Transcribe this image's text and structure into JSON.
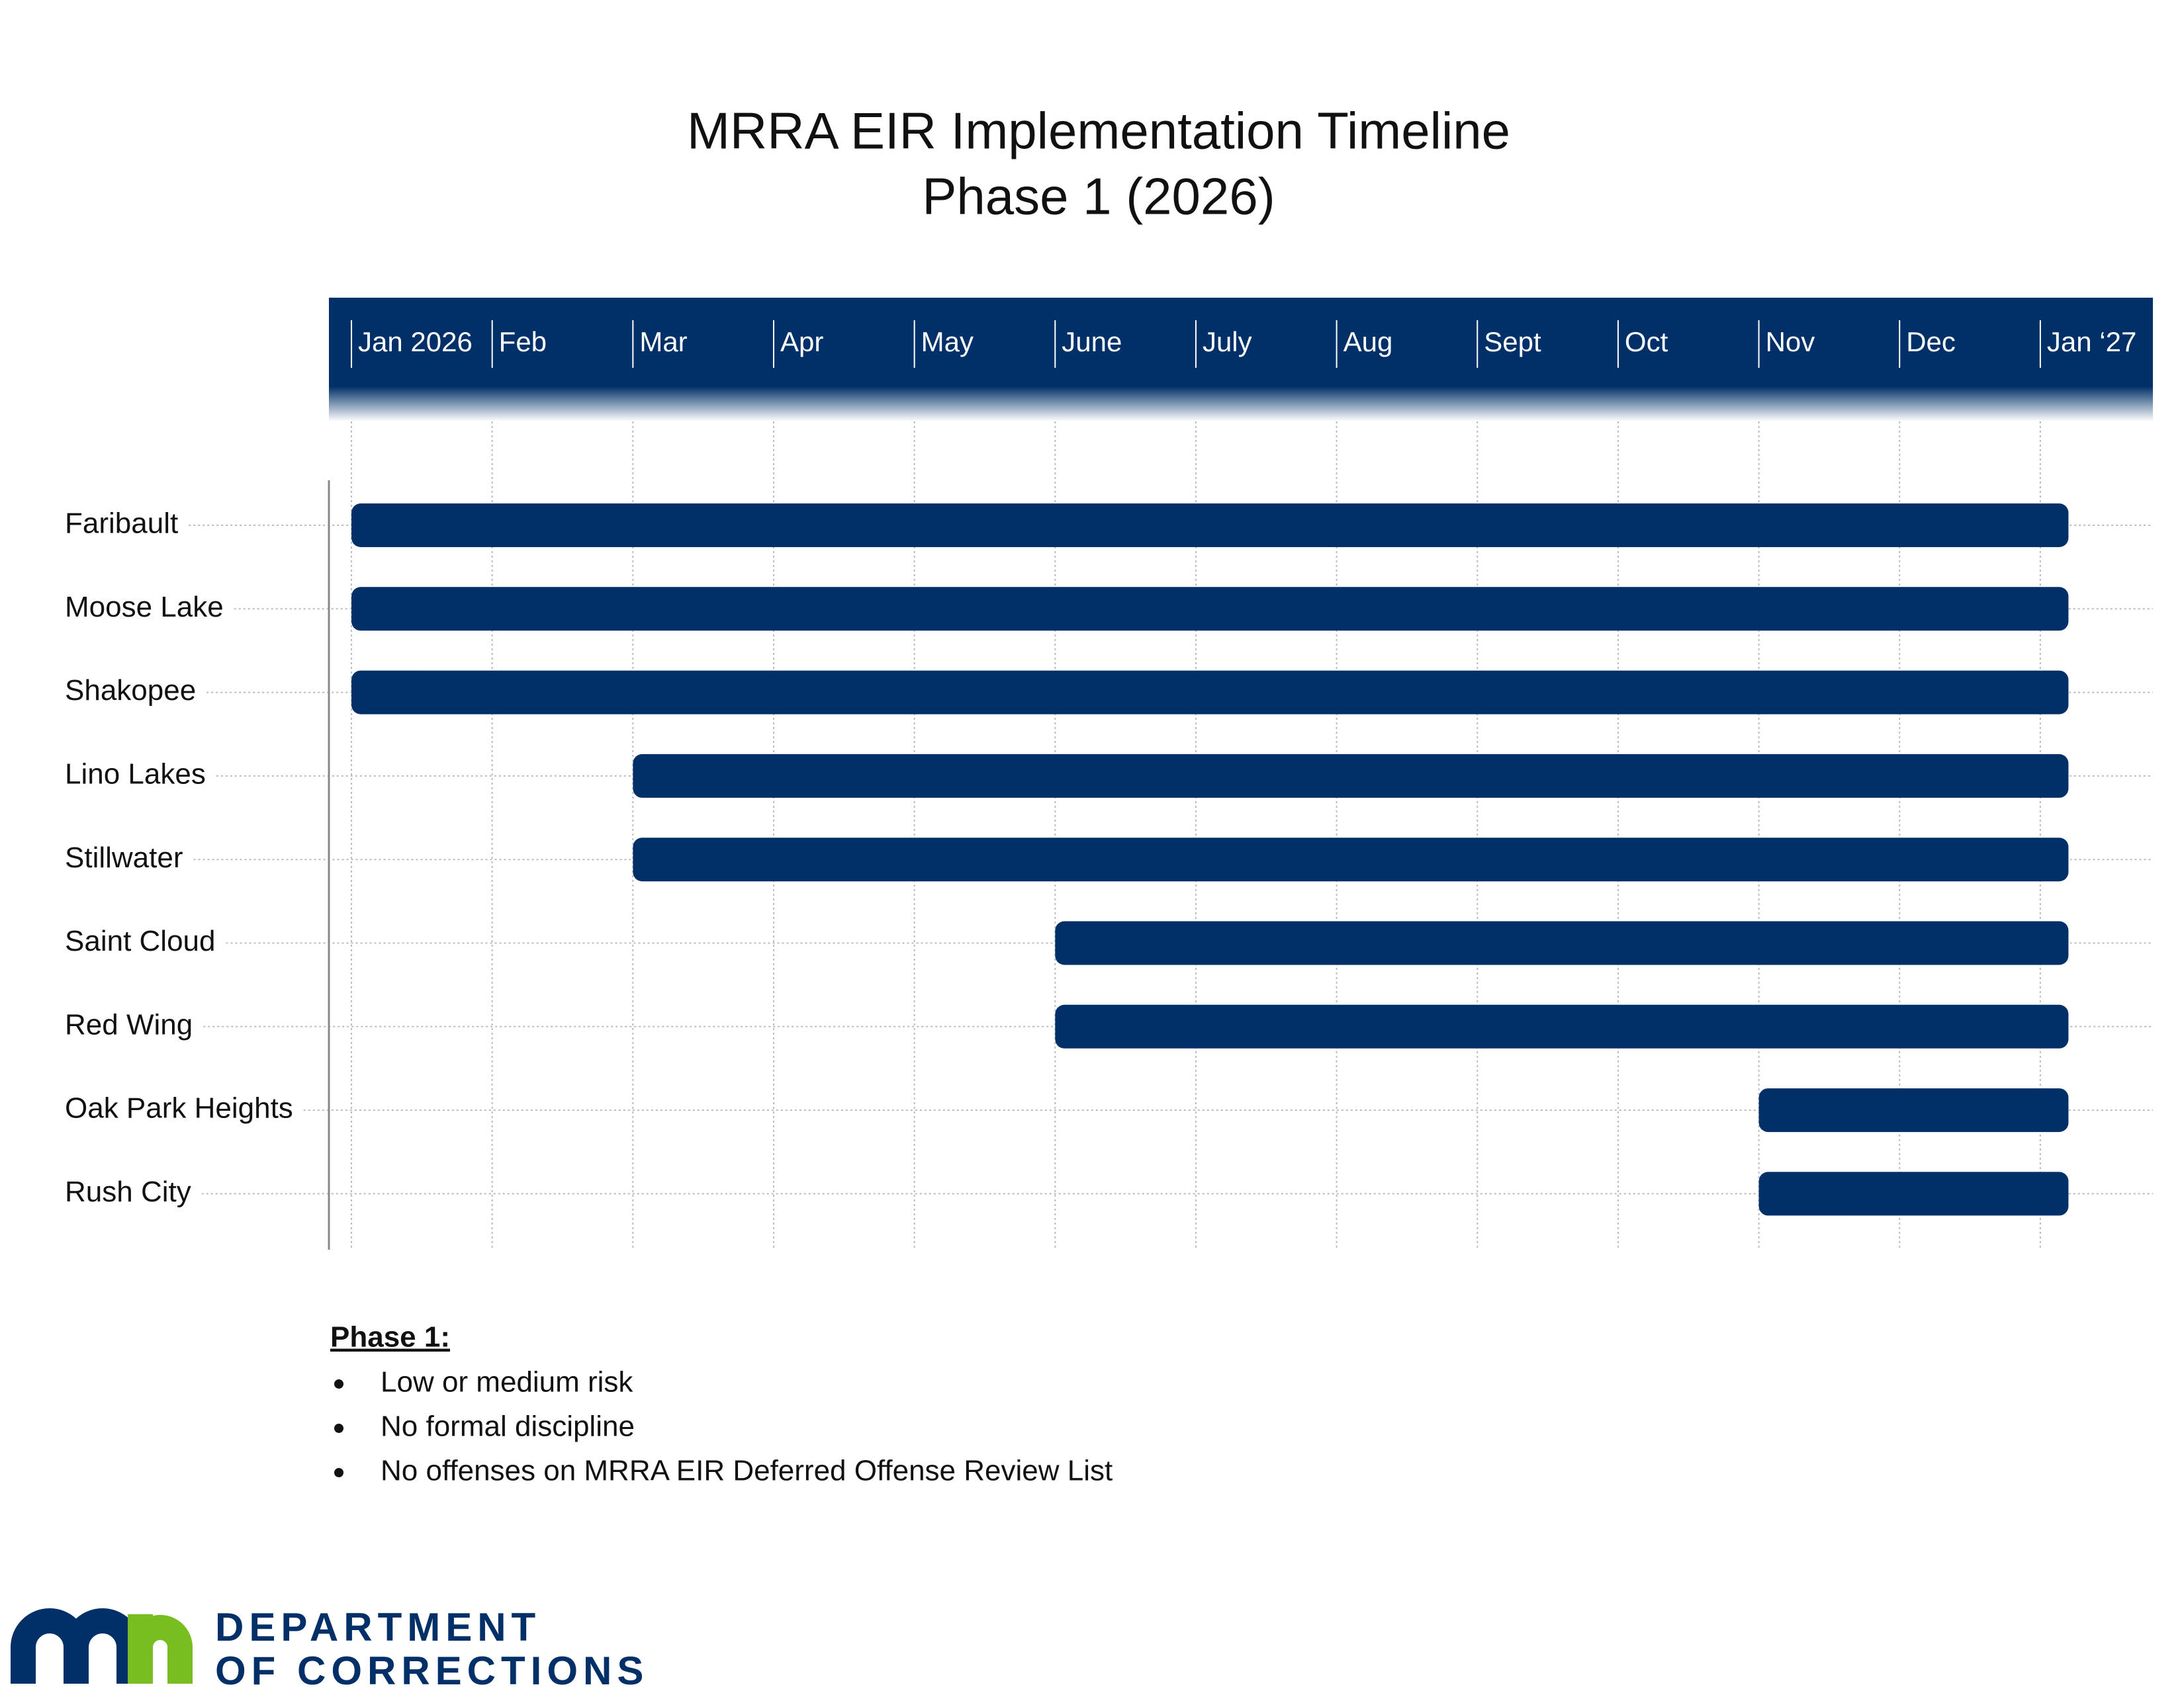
{
  "chart_data": {
    "type": "gantt",
    "title": [
      "MRRA EIR Implementation Timeline",
      "Phase 1 (2026)"
    ],
    "categories": [
      "Faribault",
      "Moose Lake",
      "Shakopee",
      "Lino Lakes",
      "Stillwater",
      "Saint Cloud",
      "Red Wing",
      "Oak Park Heights",
      "Rush City"
    ],
    "start": [
      0,
      0,
      0,
      2,
      2,
      5,
      5,
      10,
      10
    ],
    "end": [
      12.2,
      12.2,
      12.2,
      12.2,
      12.2,
      12.2,
      12.2,
      12.2,
      12.2
    ],
    "color": "#003067",
    "xlim": [
      -0.16,
      12.8
    ],
    "xticks": [
      {
        "value": 0,
        "label": "Jan 2026"
      },
      {
        "value": 1,
        "label": "Feb"
      },
      {
        "value": 2,
        "label": "Mar"
      },
      {
        "value": 3,
        "label": "Apr"
      },
      {
        "value": 4,
        "label": "May"
      },
      {
        "value": 5,
        "label": "June"
      },
      {
        "value": 6,
        "label": "July"
      },
      {
        "value": 7,
        "label": "Aug"
      },
      {
        "value": 8,
        "label": "Sept"
      },
      {
        "value": 9,
        "label": "Oct"
      },
      {
        "value": 10,
        "label": "Nov"
      },
      {
        "value": 11,
        "label": "Dec"
      },
      {
        "value": 12,
        "label": "Jan ‘27"
      }
    ],
    "grid": true
  },
  "notes": {
    "heading": "Phase 1:",
    "items": [
      "Low or medium risk",
      "No formal discipline",
      "No offenses on MRRA EIR Deferred Offense Review List"
    ]
  },
  "logo": {
    "line1": "DEPARTMENT",
    "line2": "OF CORRECTIONS"
  }
}
